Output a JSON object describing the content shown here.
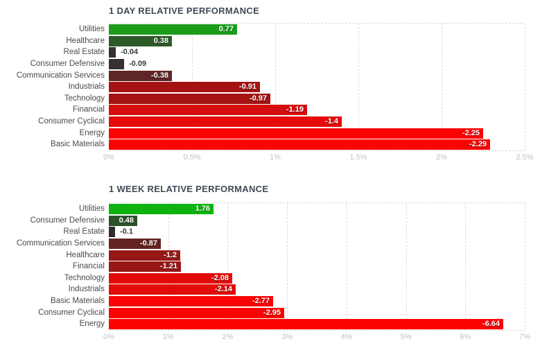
{
  "page": {
    "background": "#ffffff",
    "title_color": "#3e4a56",
    "tick_color": "#c0c0c4",
    "grid_color": "#dcdcdc"
  },
  "chart_data": [
    {
      "type": "bar",
      "orientation": "horizontal",
      "title": "1 DAY RELATIVE PERFORMANCE",
      "xlabel": "",
      "ylabel": "",
      "axis_max": 2.5,
      "tick_values": [
        0,
        0.5,
        1,
        1.5,
        2,
        2.5
      ],
      "axis_ticks": [
        "0%",
        "0.5%",
        "1%",
        "1.5%",
        "2%",
        "2.5%"
      ],
      "grid": true,
      "categories": [
        "Utilities",
        "Healthcare",
        "Real Estate",
        "Consumer Defensive",
        "Communication Services",
        "Industrials",
        "Technology",
        "Financial",
        "Consumer Cyclical",
        "Energy",
        "Basic Materials"
      ],
      "values": [
        0.77,
        0.38,
        -0.04,
        -0.09,
        -0.38,
        -0.91,
        -0.97,
        -1.19,
        -1.4,
        -2.25,
        -2.29
      ],
      "value_labels": [
        "0.77",
        "0.38",
        "-0.04",
        "-0.09",
        "-0.38",
        "-0.91",
        "-0.97",
        "-1.19",
        "-1.4",
        "-2.25",
        "-2.29"
      ],
      "bar_colors": [
        "#1a9c1a",
        "#2b5a28",
        "#383030",
        "#383030",
        "#5e2626",
        "#a41212",
        "#a41212",
        "#d40e0e",
        "#e60909",
        "#fb0303",
        "#fb0303"
      ],
      "label_inside": [
        true,
        true,
        false,
        false,
        true,
        true,
        true,
        true,
        true,
        true,
        true
      ]
    },
    {
      "type": "bar",
      "orientation": "horizontal",
      "title": "1 WEEK RELATIVE PERFORMANCE",
      "xlabel": "",
      "ylabel": "",
      "axis_max": 7,
      "tick_values": [
        0,
        1,
        2,
        3,
        4,
        5,
        6,
        7
      ],
      "axis_ticks": [
        "0%",
        "1%",
        "2%",
        "3%",
        "4%",
        "5%",
        "6%",
        "7%"
      ],
      "grid": true,
      "categories": [
        "Utilities",
        "Consumer Defensive",
        "Real Estate",
        "Communication Services",
        "Healthcare",
        "Financial",
        "Technology",
        "Industrials",
        "Basic Materials",
        "Consumer Cyclical",
        "Energy"
      ],
      "values": [
        1.76,
        0.48,
        -0.1,
        -0.87,
        -1.2,
        -1.21,
        -2.08,
        -2.14,
        -2.77,
        -2.95,
        -6.64
      ],
      "value_labels": [
        "1.76",
        "0.48",
        "-0.1",
        "-0.87",
        "-1.2",
        "-1.21",
        "-2.08",
        "-2.14",
        "-2.77",
        "-2.95",
        "-6.64"
      ],
      "bar_colors": [
        "#0fb30f",
        "#2b532b",
        "#332c2c",
        "#642323",
        "#971616",
        "#971616",
        "#e20b0b",
        "#e20b0b",
        "#f90404",
        "#f90404",
        "#fb0303"
      ],
      "label_inside": [
        true,
        true,
        false,
        true,
        true,
        true,
        true,
        true,
        true,
        true,
        true
      ]
    }
  ]
}
